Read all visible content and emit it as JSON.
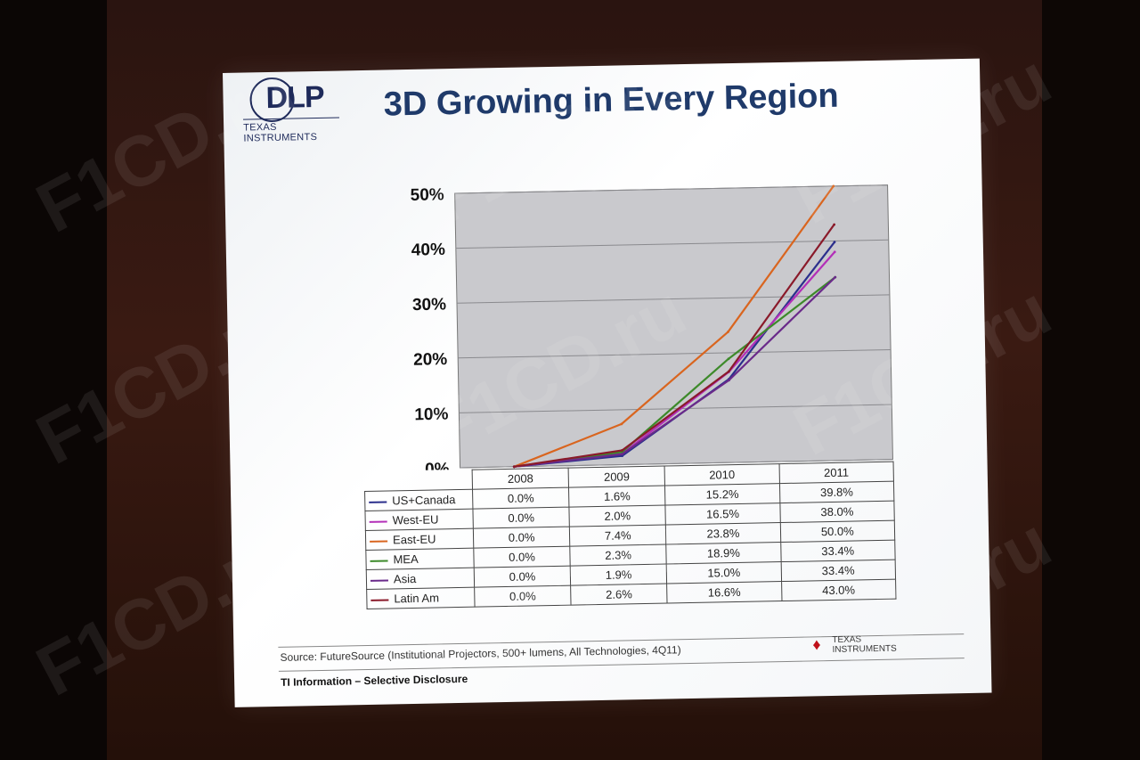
{
  "slide": {
    "title": "3D Growing in Every Region",
    "logo_main": "DLP",
    "logo_sub": "TEXAS INSTRUMENTS",
    "source": "Source: FutureSource (Institutional Projectors, 500+ lumens, All Technologies, 4Q11)",
    "footer_logo_text": "TEXAS INSTRUMENTS",
    "disclosure": "TI Information – Selective Disclosure"
  },
  "watermark_text": "F1CD.ru",
  "chart_data": {
    "type": "line",
    "x": [
      "2008",
      "2009",
      "2010",
      "2011"
    ],
    "ylim": [
      0,
      50
    ],
    "yticks": [
      "0%",
      "10%",
      "20%",
      "30%",
      "40%",
      "50%"
    ],
    "plot_background": "#c9c9cd",
    "grid": true,
    "legend": "table-below",
    "series": [
      {
        "name": "US+Canada",
        "color": "#2b2f8c",
        "values": [
          0.0,
          1.6,
          15.2,
          39.8
        ],
        "labels": [
          "0.0%",
          "1.6%",
          "15.2%",
          "39.8%"
        ]
      },
      {
        "name": "West-EU",
        "color": "#b32fb8",
        "values": [
          0.0,
          2.0,
          16.5,
          38.0
        ],
        "labels": [
          "0.0%",
          "2.0%",
          "16.5%",
          "38.0%"
        ]
      },
      {
        "name": "East-EU",
        "color": "#d9651f",
        "values": [
          0.0,
          7.4,
          23.8,
          50.0
        ],
        "labels": [
          "0.0%",
          "7.4%",
          "23.8%",
          "50.0%"
        ]
      },
      {
        "name": "MEA",
        "color": "#3d8a2a",
        "values": [
          0.0,
          2.3,
          18.9,
          33.4
        ],
        "labels": [
          "0.0%",
          "2.3%",
          "18.9%",
          "33.4%"
        ]
      },
      {
        "name": "Asia",
        "color": "#6a2a8a",
        "values": [
          0.0,
          1.9,
          15.0,
          33.4
        ],
        "labels": [
          "0.0%",
          "1.9%",
          "15.0%",
          "33.4%"
        ]
      },
      {
        "name": "Latin Am",
        "color": "#8a1a2a",
        "values": [
          0.0,
          2.6,
          16.6,
          43.0
        ],
        "labels": [
          "0.0%",
          "2.6%",
          "16.6%",
          "43.0%"
        ]
      }
    ]
  }
}
